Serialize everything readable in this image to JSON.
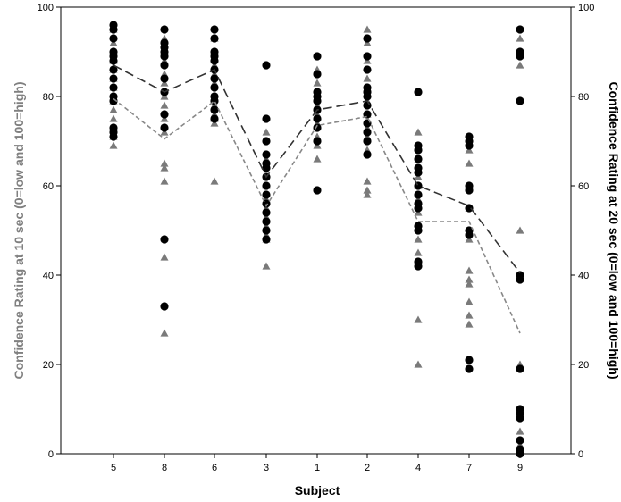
{
  "chart_data": {
    "type": "scatter",
    "xlabel": "Subject",
    "ylabel_left": "Confidence Rating at 10 sec (0=low and 100=high)",
    "ylabel_right": "Confidence Rating at 20 sec (0=low and 100=high)",
    "categories": [
      "5",
      "8",
      "6",
      "3",
      "1",
      "2",
      "4",
      "7",
      "9"
    ],
    "ylim": [
      0,
      100
    ],
    "yticks": [
      0,
      20,
      40,
      60,
      80,
      100
    ],
    "grid": false,
    "colors": {
      "ten_sec": "#000000",
      "twenty_sec": "#7a7a7a"
    },
    "series": [
      {
        "marker": "circle",
        "axis": "left",
        "points": {
          "5": [
            96,
            95,
            93,
            90,
            89,
            88,
            86,
            84,
            82,
            80,
            79,
            73,
            72,
            71
          ],
          "8": [
            95,
            92,
            91,
            90,
            89,
            87,
            84,
            81,
            76,
            73,
            48,
            33
          ],
          "6": [
            95,
            93,
            90,
            89,
            88,
            86,
            84,
            82,
            80,
            79,
            77,
            75
          ],
          "3": [
            87,
            75,
            70,
            67,
            65,
            64,
            62,
            60,
            58,
            56,
            54,
            52,
            50,
            48
          ],
          "1": [
            89,
            85,
            81,
            80,
            79,
            77,
            75,
            73,
            70,
            59
          ],
          "2": [
            93,
            89,
            86,
            82,
            81,
            80,
            78,
            76,
            74,
            72,
            70,
            67
          ],
          "4": [
            81,
            69,
            68,
            66,
            64,
            63,
            60,
            58,
            56,
            55,
            51,
            50,
            43,
            42
          ],
          "7": [
            71,
            70,
            69,
            60,
            59,
            55,
            50,
            49,
            21,
            19
          ],
          "9": [
            95,
            90,
            89,
            79,
            40,
            39,
            19,
            10,
            9,
            8,
            3,
            1,
            0
          ]
        },
        "means": [
          87,
          81,
          86,
          62,
          77,
          79,
          60,
          55.5,
          40.5
        ]
      },
      {
        "marker": "triangle",
        "axis": "right",
        "points": {
          "5": [
            95,
            92,
            90,
            88,
            86,
            84,
            82,
            80,
            79,
            77,
            75,
            73,
            71,
            69
          ],
          "8": [
            93,
            90,
            88,
            85,
            83,
            80,
            78,
            75,
            72,
            65,
            64,
            61,
            44,
            27
          ],
          "6": [
            93,
            90,
            87,
            85,
            83,
            80,
            78,
            76,
            75,
            74,
            61
          ],
          "3": [
            72,
            66,
            62,
            60,
            57,
            55,
            53,
            51,
            49,
            48,
            42
          ],
          "1": [
            86,
            83,
            80,
            78,
            76,
            74,
            71,
            69,
            66
          ],
          "2": [
            95,
            92,
            88,
            84,
            82,
            79,
            76,
            73,
            71,
            68,
            61,
            59,
            58
          ],
          "4": [
            72,
            69,
            66,
            62,
            60,
            57,
            54,
            51,
            48,
            45,
            30,
            20
          ],
          "7": [
            70,
            68,
            65,
            60,
            55,
            50,
            48,
            41,
            39,
            38,
            34,
            31,
            29
          ],
          "9": [
            93,
            90,
            87,
            50,
            20,
            10,
            5,
            2,
            1
          ]
        },
        "means": [
          79.5,
          70.5,
          79,
          55.5,
          73.5,
          75.5,
          52,
          52,
          27
        ]
      }
    ]
  }
}
